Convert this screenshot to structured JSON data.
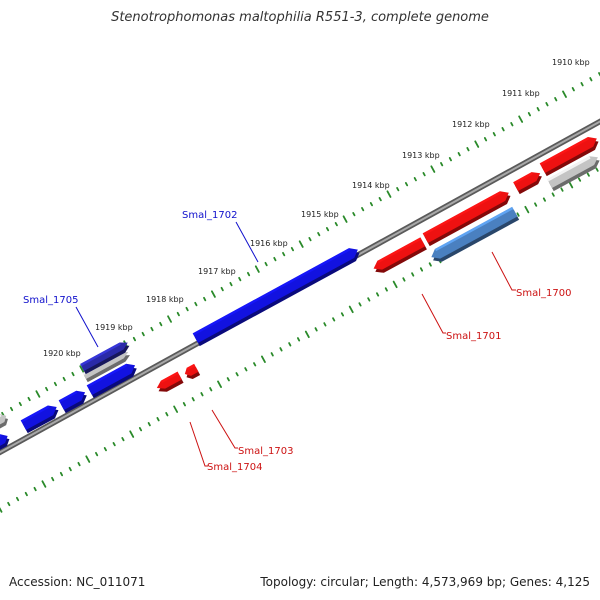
{
  "header": {
    "title": "Stenotrophomonas maltophilia R551-3, complete genome"
  },
  "footer": {
    "accession": "Accession: NC_011071",
    "summary": "Topology: circular; Length: 4,573,969 bp; Genes: 4,125"
  },
  "colors": {
    "forward_gene": "#1212e0",
    "reverse_gene": "#ee1111",
    "gray_gene": "#c4c4c4",
    "highlight_gene": "#4a80c0",
    "dark_gene": "#2a2aa8",
    "backbone": "#888888",
    "tick": "#2a8a2a",
    "forward_label": "#1111cc",
    "reverse_label": "#cc1111"
  },
  "map": {
    "ticks": [
      "1910 kbp",
      "1911 kbp",
      "1912 kbp",
      "1913 kbp",
      "1914 kbp",
      "1915 kbp",
      "1916 kbp",
      "1917 kbp",
      "1918 kbp",
      "1919 kbp",
      "1920 kbp"
    ],
    "gene_labels": [
      {
        "id": "Smal_1702",
        "text": "Smal_1702",
        "strand": "forward"
      },
      {
        "id": "Smal_1705",
        "text": "Smal_1705",
        "strand": "forward"
      },
      {
        "id": "Smal_1700",
        "text": "Smal_1700",
        "strand": "reverse"
      },
      {
        "id": "Smal_1701",
        "text": "Smal_1701",
        "strand": "reverse"
      },
      {
        "id": "Smal_1703",
        "text": "Smal_1703",
        "strand": "reverse"
      },
      {
        "id": "Smal_1704",
        "text": "Smal_1704",
        "strand": "reverse"
      }
    ]
  }
}
